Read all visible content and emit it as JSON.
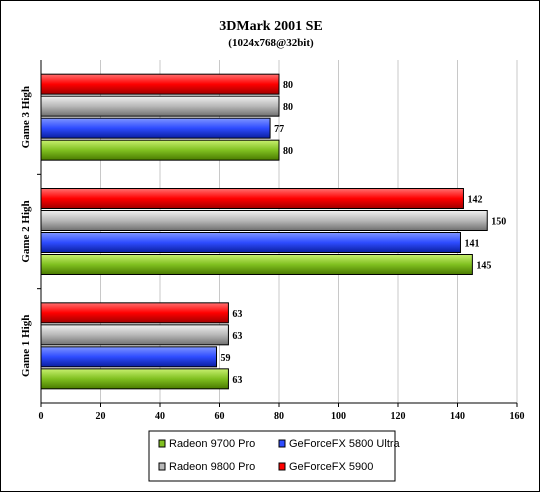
{
  "chart_data": {
    "type": "bar",
    "orientation": "horizontal",
    "title": "3DMark 2001 SE",
    "subtitle": "(1024x768@32bit)",
    "categories": [
      "Game 3 High",
      "Game 2 High",
      "Game 1 High"
    ],
    "series": [
      {
        "name": "GeForceFX 5900",
        "color": "#ff0000",
        "values": [
          80,
          142,
          63
        ]
      },
      {
        "name": "Radeon 9800 Pro",
        "color": "#b8b8b8",
        "values": [
          80,
          150,
          63
        ]
      },
      {
        "name": "GeForceFX 5800 Ultra",
        "color": "#2e4cff",
        "values": [
          77,
          141,
          59
        ]
      },
      {
        "name": "Radeon 9700 Pro",
        "color": "#80c020",
        "values": [
          80,
          145,
          63
        ]
      }
    ],
    "xlim": [
      0,
      160
    ],
    "xticks": [
      "0",
      "20",
      "40",
      "60",
      "80",
      "100",
      "120",
      "140",
      "160"
    ],
    "grid": true,
    "legend": {
      "position": "bottom",
      "rows": [
        [
          "Radeon 9700 Pro",
          "GeForceFX 5800 Ultra"
        ],
        [
          "Radeon 9800 Pro",
          "GeForceFX 5900"
        ]
      ]
    }
  }
}
